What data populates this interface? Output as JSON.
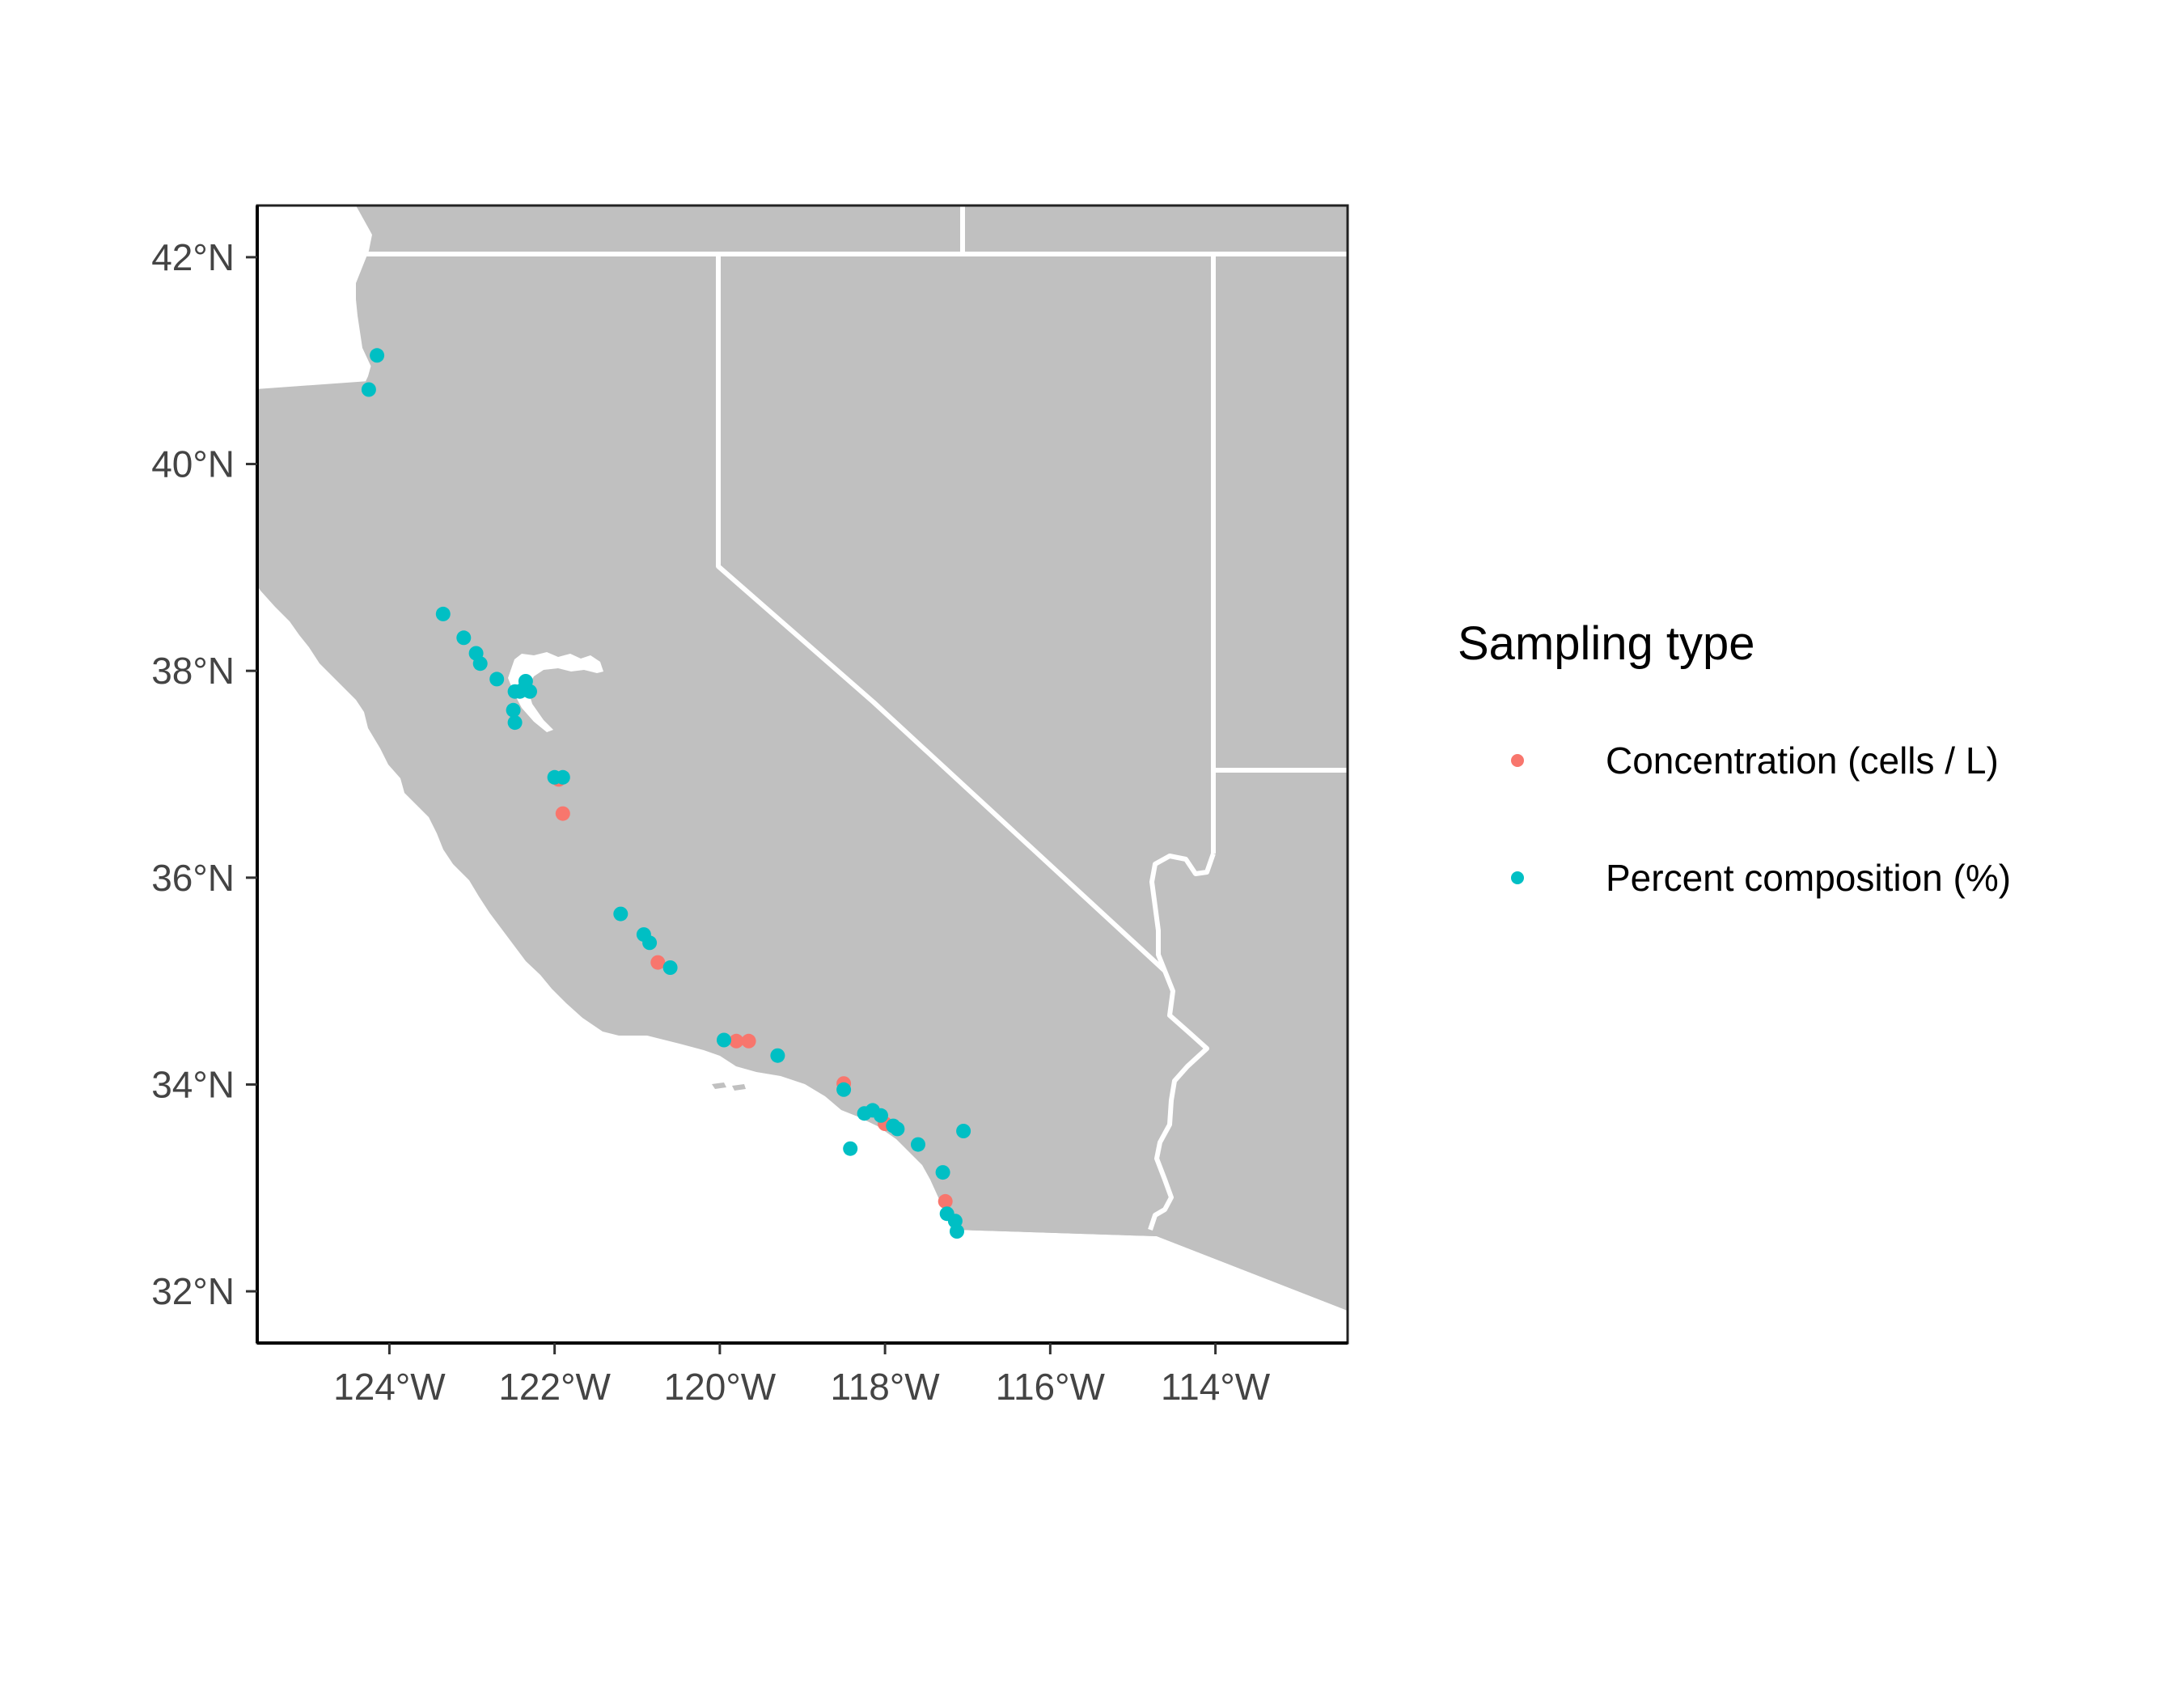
{
  "map": {
    "type": "scatter-map",
    "x_ticks": [
      {
        "lon": -124,
        "label": "124°W"
      },
      {
        "lon": -122,
        "label": "122°W"
      },
      {
        "lon": -120,
        "label": "120°W"
      },
      {
        "lon": -118,
        "label": "118°W"
      },
      {
        "lon": -116,
        "label": "116°W"
      },
      {
        "lon": -114,
        "label": "114°W"
      }
    ],
    "y_ticks": [
      {
        "lat": 32,
        "label": "32°N"
      },
      {
        "lat": 34,
        "label": "34°N"
      },
      {
        "lat": 36,
        "label": "36°N"
      },
      {
        "lat": 38,
        "label": "38°N"
      },
      {
        "lat": 40,
        "label": "40°N"
      },
      {
        "lat": 42,
        "label": "42°N"
      }
    ],
    "xlim": [
      -125.6,
      -112.4
    ],
    "ylim": [
      31.5,
      42.5
    ],
    "land_color": "#c0c0c0",
    "border_color": "#ffffff",
    "legend": {
      "title": "Sampling type",
      "placement": "right",
      "items": [
        {
          "label": "Concentration (cells / L)",
          "color": "#f8766d"
        },
        {
          "label": "Percent composition (%)",
          "color": "#00bfc4"
        }
      ]
    },
    "series": [
      {
        "label": "Concentration (cells / L)",
        "color": "#f8766d",
        "points": [
          [
            -121.95,
            36.95
          ],
          [
            -121.9,
            36.62
          ],
          [
            -120.75,
            35.18
          ],
          [
            -119.8,
            34.42
          ],
          [
            -119.65,
            34.42
          ],
          [
            -118.5,
            34.01
          ],
          [
            -118.0,
            33.62
          ],
          [
            -117.27,
            32.87
          ]
        ]
      },
      {
        "label": "Percent composition (%)",
        "color": "#00bfc4",
        "points": [
          [
            -124.15,
            41.05
          ],
          [
            -124.25,
            40.72
          ],
          [
            -123.35,
            38.55
          ],
          [
            -123.1,
            38.32
          ],
          [
            -122.95,
            38.17
          ],
          [
            -122.9,
            38.07
          ],
          [
            -122.7,
            37.92
          ],
          [
            -122.48,
            37.8
          ],
          [
            -122.42,
            37.8
          ],
          [
            -122.38,
            37.82
          ],
          [
            -122.3,
            37.8
          ],
          [
            -122.35,
            37.9
          ],
          [
            -122.5,
            37.62
          ],
          [
            -122.48,
            37.5
          ],
          [
            -122.0,
            36.97
          ],
          [
            -121.9,
            36.97
          ],
          [
            -121.2,
            35.65
          ],
          [
            -120.92,
            35.45
          ],
          [
            -120.85,
            35.37
          ],
          [
            -120.6,
            35.13
          ],
          [
            -119.95,
            34.43
          ],
          [
            -119.3,
            34.28
          ],
          [
            -118.5,
            33.95
          ],
          [
            -118.25,
            33.72
          ],
          [
            -118.15,
            33.75
          ],
          [
            -118.05,
            33.7
          ],
          [
            -117.9,
            33.6
          ],
          [
            -117.85,
            33.57
          ],
          [
            -117.6,
            33.42
          ],
          [
            -118.42,
            33.38
          ],
          [
            -117.05,
            33.55
          ],
          [
            -117.3,
            33.15
          ],
          [
            -117.25,
            32.75
          ],
          [
            -117.15,
            32.68
          ],
          [
            -117.13,
            32.58
          ]
        ]
      }
    ]
  }
}
